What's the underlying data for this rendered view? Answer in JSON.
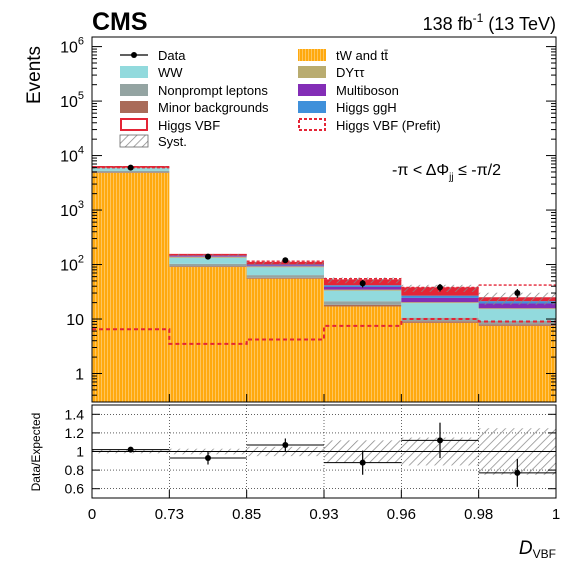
{
  "header": {
    "experiment": "CMS",
    "lumi_value": "138 fb",
    "lumi_exp": "-1",
    "energy": "(13 TeV)"
  },
  "chart_data": {
    "type": "bar",
    "upper": {
      "ylabel": "Events",
      "yscale": "log",
      "ylim": [
        0.3,
        1500000
      ],
      "ytick_labels": [
        "1",
        "10",
        "10",
        "10",
        "10",
        "10",
        "10"
      ],
      "ytick_exponents": [
        "",
        "",
        "2",
        "3",
        "4",
        "5",
        "6"
      ],
      "annotation": {
        "prefix": "-π < ΔΦ",
        "subscript": "jj",
        "suffix": " ≤ -π/2"
      },
      "bins": [
        "0-0.73",
        "0.73-0.85",
        "0.85-0.93",
        "0.93-0.96",
        "0.96-0.98",
        "0.98-1"
      ],
      "stack_order": [
        "tW and tt̄",
        "Minor backgrounds",
        "Nonprompt leptons",
        "WW",
        "DYττ",
        "Multiboson",
        "Higgs ggH",
        "Higgs VBF"
      ],
      "stack": [
        {
          "name": "tW and tt̄",
          "color": "#ffa90e",
          "values": [
            4800,
            90,
            55,
            17,
            8.5,
            7.5
          ]
        },
        {
          "name": "Minor backgrounds",
          "color": "#a96b59",
          "values": [
            120,
            3,
            2,
            1.2,
            0.6,
            0.5
          ]
        },
        {
          "name": "Nonprompt leptons",
          "color": "#94a4a2",
          "values": [
            350,
            10,
            7,
            3,
            1.5,
            1.2
          ]
        },
        {
          "name": "WW",
          "color": "#92dadd",
          "values": [
            700,
            30,
            25,
            12,
            9,
            6
          ]
        },
        {
          "name": "DYττ",
          "color": "#b9ac70",
          "values": [
            180,
            6,
            4,
            1.5,
            0.8,
            0.6
          ]
        },
        {
          "name": "Multiboson",
          "color": "#832db6",
          "values": [
            40,
            4,
            4,
            4,
            4,
            3.5
          ]
        },
        {
          "name": "Higgs ggH",
          "color": "#3f90da",
          "values": [
            25,
            3,
            3,
            3,
            2.5,
            2
          ]
        },
        {
          "name": "Higgs VBF",
          "color": "#e42536",
          "values": [
            10,
            6,
            8,
            10,
            10,
            3
          ]
        }
      ],
      "prefit_vbf": [
        6.5,
        3.5,
        4.2,
        7.5,
        10,
        9
      ],
      "prefit_total": [
        6000,
        150,
        115,
        55,
        38,
        42
      ],
      "data": {
        "name": "Data",
        "values": [
          6000,
          140,
          120,
          45,
          38,
          30
        ],
        "errors": [
          80,
          12,
          11,
          7,
          6,
          5.5
        ]
      },
      "legend": {
        "left": [
          "Data",
          "WW",
          "Nonprompt leptons",
          "Minor backgrounds",
          "Higgs VBF",
          "Syst."
        ],
        "right": [
          "tW and tt̄",
          "DYττ",
          "Multiboson",
          "Higgs ggH",
          "Higgs VBF (Prefit)"
        ]
      }
    },
    "ratio": {
      "ylabel": "Data/Expected",
      "ylim": [
        0.5,
        1.5
      ],
      "yticks": [
        "0.6",
        "0.8",
        "1",
        "1.2",
        "1.4"
      ],
      "values": [
        1.02,
        0.93,
        1.07,
        0.88,
        1.12,
        0.77
      ],
      "errors": [
        0.015,
        0.07,
        0.07,
        0.13,
        0.19,
        0.15
      ],
      "syst": [
        0.02,
        0.03,
        0.05,
        0.12,
        0.15,
        0.25
      ]
    },
    "xaxis": {
      "xlabel": "D",
      "xlabel_sub": "VBF",
      "ticks": [
        "0",
        "0.73",
        "0.85",
        "0.93",
        "0.96",
        "0.98",
        "1"
      ]
    }
  }
}
